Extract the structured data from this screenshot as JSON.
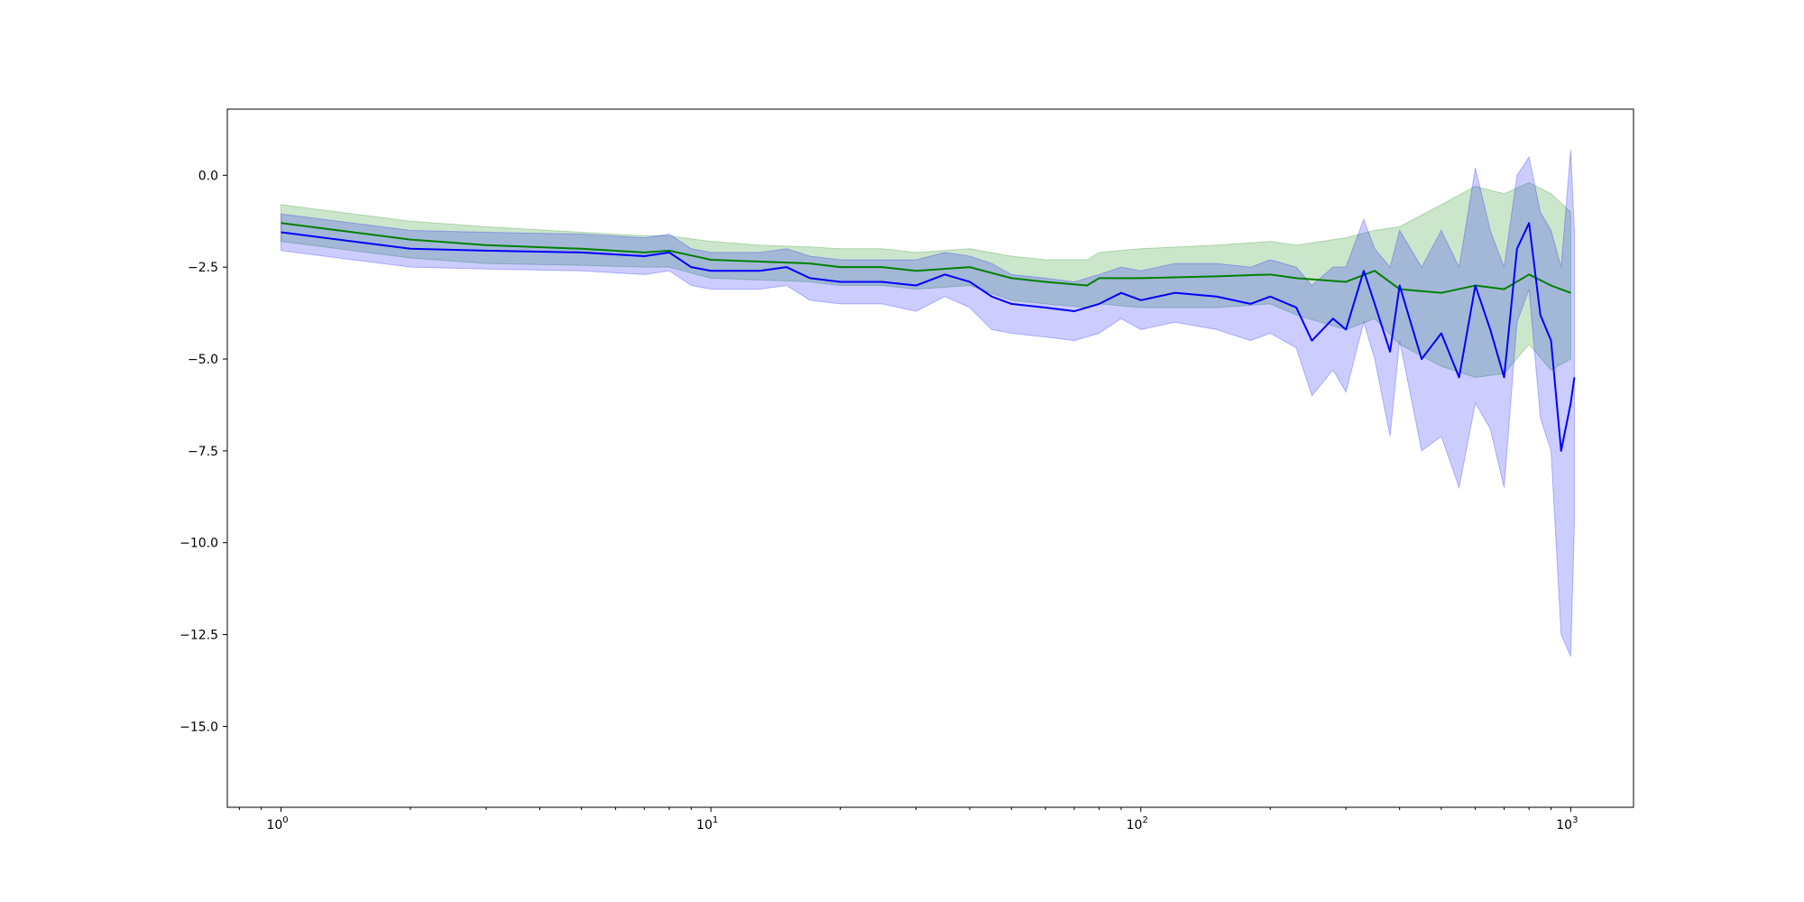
{
  "chart_data": {
    "type": "line",
    "title": "",
    "xlabel": "",
    "ylabel": "",
    "x_scale": "log",
    "xlim": [
      0.75,
      1400
    ],
    "ylim": [
      -17.2,
      1.8
    ],
    "grid": false,
    "legend": "none",
    "x_ticks": [
      {
        "value": 1,
        "base": "10",
        "exp": "0"
      },
      {
        "value": 10,
        "base": "10",
        "exp": "1"
      },
      {
        "value": 100,
        "base": "10",
        "exp": "2"
      },
      {
        "value": 1000,
        "base": "10",
        "exp": "3"
      }
    ],
    "y_ticks": [
      {
        "value": 0,
        "label": "0.0"
      },
      {
        "value": -2.5,
        "label": "−2.5"
      },
      {
        "value": -5,
        "label": "−5.0"
      },
      {
        "value": -7.5,
        "label": "−7.5"
      },
      {
        "value": -10,
        "label": "−10.0"
      },
      {
        "value": -12.5,
        "label": "−12.5"
      },
      {
        "value": -15,
        "label": "−15.0"
      }
    ],
    "series": [
      {
        "color": "#008000",
        "band_color": "#008000",
        "band_opacity": 0.2,
        "x": [
          1,
          2,
          3,
          5,
          7,
          8,
          10,
          13,
          17,
          20,
          25,
          30,
          40,
          50,
          60,
          75,
          80,
          100,
          150,
          200,
          230,
          300,
          350,
          400,
          500,
          600,
          700,
          800,
          900,
          1000
        ],
        "y": [
          -1.3,
          -1.75,
          -1.9,
          -2.0,
          -2.1,
          -2.05,
          -2.3,
          -2.35,
          -2.4,
          -2.5,
          -2.5,
          -2.6,
          -2.5,
          -2.8,
          -2.9,
          -3.0,
          -2.8,
          -2.8,
          -2.75,
          -2.7,
          -2.8,
          -2.9,
          -2.6,
          -3.1,
          -3.2,
          -3.0,
          -3.1,
          -2.7,
          -3.0,
          -3.2
        ],
        "upper": [
          -0.8,
          -1.25,
          -1.4,
          -1.55,
          -1.65,
          -1.65,
          -1.8,
          -1.9,
          -1.95,
          -2.0,
          -2.0,
          -2.1,
          -2.0,
          -2.2,
          -2.3,
          -2.3,
          -2.1,
          -2.0,
          -1.9,
          -1.8,
          -1.9,
          -1.7,
          -1.5,
          -1.4,
          -0.8,
          -0.3,
          -0.5,
          -0.2,
          -0.5,
          -1.0
        ],
        "lower": [
          -1.8,
          -2.25,
          -2.4,
          -2.45,
          -2.5,
          -2.5,
          -2.8,
          -2.85,
          -2.9,
          -3.0,
          -3.0,
          -3.1,
          -3.0,
          -3.4,
          -3.5,
          -3.6,
          -3.5,
          -3.6,
          -3.6,
          -3.5,
          -3.8,
          -4.2,
          -3.9,
          -4.6,
          -5.2,
          -5.5,
          -5.4,
          -4.6,
          -5.3,
          -5.0
        ]
      },
      {
        "color": "#0000ff",
        "band_color": "#0000ff",
        "band_opacity": 0.2,
        "x": [
          1,
          2,
          3,
          5,
          7,
          8,
          9,
          10,
          13,
          15,
          17,
          20,
          25,
          30,
          35,
          40,
          45,
          50,
          60,
          70,
          80,
          90,
          100,
          120,
          150,
          180,
          200,
          230,
          250,
          280,
          300,
          330,
          350,
          380,
          400,
          450,
          500,
          550,
          600,
          650,
          700,
          750,
          800,
          850,
          900,
          950,
          1000,
          1020
        ],
        "y": [
          -1.55,
          -2.0,
          -2.05,
          -2.1,
          -2.2,
          -2.1,
          -2.5,
          -2.6,
          -2.6,
          -2.5,
          -2.8,
          -2.9,
          -2.9,
          -3.0,
          -2.7,
          -2.9,
          -3.3,
          -3.5,
          -3.6,
          -3.7,
          -3.5,
          -3.2,
          -3.4,
          -3.2,
          -3.3,
          -3.5,
          -3.3,
          -3.6,
          -4.5,
          -3.9,
          -4.2,
          -2.6,
          -3.5,
          -4.8,
          -3.0,
          -5.0,
          -4.3,
          -5.5,
          -3.0,
          -4.2,
          -5.5,
          -2.0,
          -1.3,
          -3.8,
          -4.5,
          -7.5,
          -6.2,
          -5.5
        ],
        "upper": [
          -1.05,
          -1.5,
          -1.55,
          -1.6,
          -1.7,
          -1.6,
          -2.0,
          -2.1,
          -2.1,
          -2.0,
          -2.2,
          -2.3,
          -2.3,
          -2.3,
          -2.1,
          -2.2,
          -2.4,
          -2.7,
          -2.8,
          -2.9,
          -2.7,
          -2.5,
          -2.6,
          -2.4,
          -2.4,
          -2.5,
          -2.3,
          -2.5,
          -3.0,
          -2.5,
          -2.5,
          -1.2,
          -2.0,
          -2.5,
          -1.5,
          -2.5,
          -1.5,
          -2.5,
          0.2,
          -1.5,
          -2.5,
          0.0,
          0.5,
          -1.0,
          -1.5,
          -2.5,
          0.7,
          -1.5
        ],
        "lower": [
          -2.05,
          -2.5,
          -2.55,
          -2.6,
          -2.7,
          -2.6,
          -3.0,
          -3.1,
          -3.1,
          -3.0,
          -3.4,
          -3.5,
          -3.5,
          -3.7,
          -3.3,
          -3.6,
          -4.2,
          -4.3,
          -4.4,
          -4.5,
          -4.3,
          -3.9,
          -4.2,
          -4.0,
          -4.2,
          -4.5,
          -4.3,
          -4.7,
          -6.0,
          -5.3,
          -5.9,
          -4.0,
          -5.0,
          -7.1,
          -4.5,
          -7.5,
          -7.1,
          -8.5,
          -6.2,
          -6.9,
          -8.5,
          -4.0,
          -3.1,
          -6.6,
          -7.5,
          -12.5,
          -13.1,
          -9.5
        ]
      }
    ]
  }
}
